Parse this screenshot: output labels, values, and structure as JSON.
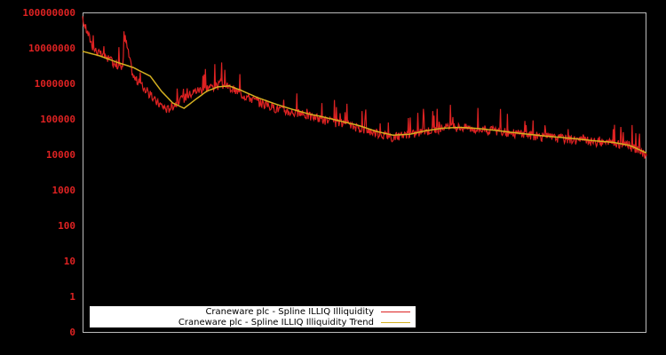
{
  "chart_data": {
    "type": "line",
    "title": "",
    "xlabel": "",
    "ylabel": "",
    "yscale": "log",
    "ylim": [
      0,
      100000000
    ],
    "y_ticks": [
      "100000000",
      "10000000",
      "1000000",
      "100000",
      "10000",
      "1000",
      "100",
      "10",
      "1",
      "0"
    ],
    "grid": false,
    "legend_position": "lower-left",
    "background": "#000000",
    "series": [
      {
        "name": "Craneware plc - Spline ILLIQ Illiquidity",
        "color": "#dd2222",
        "x_frac": [
          0.0,
          0.02,
          0.04,
          0.06,
          0.07,
          0.075,
          0.09,
          0.11,
          0.13,
          0.15,
          0.17,
          0.2,
          0.23,
          0.25,
          0.28,
          0.31,
          0.34,
          0.37,
          0.4,
          0.43,
          0.46,
          0.49,
          0.52,
          0.55,
          0.58,
          0.61,
          0.64,
          0.67,
          0.7,
          0.73,
          0.76,
          0.79,
          0.82,
          0.85,
          0.88,
          0.91,
          0.94,
          0.97,
          1.0
        ],
        "values": [
          60000000,
          9000000,
          5000000,
          3500000,
          2500000,
          20000000,
          1500000,
          700000,
          300000,
          180000,
          300000,
          600000,
          800000,
          900000,
          500000,
          300000,
          200000,
          150000,
          120000,
          90000,
          70000,
          55000,
          40000,
          30000,
          35000,
          45000,
          55000,
          58000,
          50000,
          45000,
          40000,
          35000,
          30000,
          28000,
          25000,
          22000,
          20000,
          17000,
          9000
        ]
      },
      {
        "name": "Craneware plc - Spline ILLIQ Illiquidity Trend",
        "color": "#d4b020",
        "x_frac": [
          0.0,
          0.03,
          0.06,
          0.09,
          0.12,
          0.14,
          0.16,
          0.18,
          0.2,
          0.22,
          0.24,
          0.26,
          0.28,
          0.31,
          0.34,
          0.37,
          0.4,
          0.43,
          0.46,
          0.49,
          0.52,
          0.55,
          0.58,
          0.61,
          0.64,
          0.67,
          0.7,
          0.73,
          0.76,
          0.79,
          0.82,
          0.85,
          0.88,
          0.91,
          0.94,
          0.97,
          1.0
        ],
        "values": [
          8000000,
          6000000,
          4000000,
          2800000,
          1600000,
          600000,
          280000,
          200000,
          350000,
          600000,
          800000,
          850000,
          650000,
          400000,
          270000,
          190000,
          140000,
          110000,
          85000,
          65000,
          45000,
          35000,
          37000,
          47000,
          55000,
          58000,
          54000,
          48000,
          42000,
          37000,
          33000,
          30000,
          27000,
          24000,
          22000,
          18000,
          11000
        ]
      }
    ]
  },
  "legend": {
    "items": [
      {
        "label": "Craneware plc - Spline ILLIQ Illiquidity",
        "color": "#dd2222"
      },
      {
        "label": "Craneware plc - Spline ILLIQ Illiquidity Trend",
        "color": "#d4b020"
      }
    ]
  }
}
